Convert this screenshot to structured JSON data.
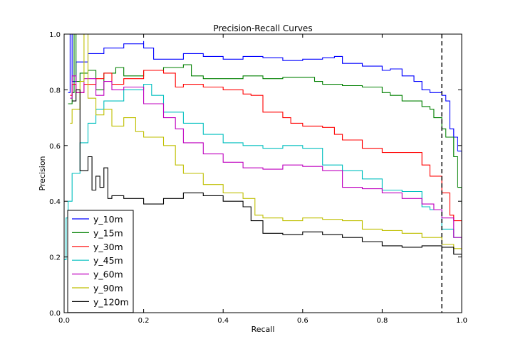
{
  "chart_data": {
    "type": "line",
    "title": "Precision-Recall Curves",
    "xlabel": "Recall",
    "ylabel": "Precision",
    "xlim": [
      0.0,
      1.0
    ],
    "ylim": [
      0.0,
      1.0
    ],
    "xticks": [
      "0.0",
      "0.2",
      "0.4",
      "0.6",
      "0.8",
      "1.0"
    ],
    "yticks": [
      "0.0",
      "0.2",
      "0.4",
      "0.6",
      "0.8",
      "1.0"
    ],
    "grid": false,
    "legend_position": "lower-left",
    "reference_line": {
      "x": 0.95,
      "style": "dashed",
      "color": "#000000"
    },
    "series": [
      {
        "name": "y_10m",
        "color": "#0000ff",
        "points": [
          [
            0.01,
            0.79
          ],
          [
            0.015,
            1.0
          ],
          [
            0.02,
            0.83
          ],
          [
            0.03,
            0.9
          ],
          [
            0.06,
            0.93
          ],
          [
            0.1,
            0.95
          ],
          [
            0.15,
            0.965
          ],
          [
            0.2,
            0.975
          ],
          [
            0.2,
            0.95
          ],
          [
            0.225,
            0.95
          ],
          [
            0.225,
            0.91
          ],
          [
            0.3,
            0.93
          ],
          [
            0.35,
            0.92
          ],
          [
            0.4,
            0.91
          ],
          [
            0.45,
            0.92
          ],
          [
            0.5,
            0.915
          ],
          [
            0.55,
            0.905
          ],
          [
            0.6,
            0.91
          ],
          [
            0.65,
            0.915
          ],
          [
            0.68,
            0.92
          ],
          [
            0.7,
            0.895
          ],
          [
            0.75,
            0.885
          ],
          [
            0.8,
            0.87
          ],
          [
            0.82,
            0.875
          ],
          [
            0.85,
            0.85
          ],
          [
            0.88,
            0.83
          ],
          [
            0.9,
            0.8
          ],
          [
            0.92,
            0.79
          ],
          [
            0.95,
            0.78
          ],
          [
            0.96,
            0.76
          ],
          [
            0.97,
            0.66
          ],
          [
            0.98,
            0.63
          ],
          [
            0.99,
            0.58
          ],
          [
            1.0,
            0.55
          ]
        ]
      },
      {
        "name": "y_15m",
        "color": "#008000",
        "points": [
          [
            0.01,
            0.75
          ],
          [
            0.02,
            0.79
          ],
          [
            0.025,
            1.0
          ],
          [
            0.03,
            0.83
          ],
          [
            0.04,
            0.86
          ],
          [
            0.06,
            0.87
          ],
          [
            0.08,
            0.8
          ],
          [
            0.1,
            0.86
          ],
          [
            0.13,
            0.88
          ],
          [
            0.15,
            0.85
          ],
          [
            0.2,
            0.87
          ],
          [
            0.25,
            0.88
          ],
          [
            0.3,
            0.89
          ],
          [
            0.32,
            0.85
          ],
          [
            0.35,
            0.84
          ],
          [
            0.4,
            0.84
          ],
          [
            0.45,
            0.85
          ],
          [
            0.5,
            0.84
          ],
          [
            0.55,
            0.845
          ],
          [
            0.6,
            0.845
          ],
          [
            0.63,
            0.83
          ],
          [
            0.65,
            0.82
          ],
          [
            0.7,
            0.815
          ],
          [
            0.75,
            0.81
          ],
          [
            0.8,
            0.79
          ],
          [
            0.82,
            0.78
          ],
          [
            0.85,
            0.76
          ],
          [
            0.88,
            0.76
          ],
          [
            0.9,
            0.74
          ],
          [
            0.92,
            0.73
          ],
          [
            0.93,
            0.7
          ],
          [
            0.95,
            0.66
          ],
          [
            0.96,
            0.63
          ],
          [
            0.98,
            0.56
          ],
          [
            0.99,
            0.45
          ],
          [
            1.0,
            0.39
          ]
        ]
      },
      {
        "name": "y_30m",
        "color": "#ff0000",
        "points": [
          [
            0.015,
            0.78
          ],
          [
            0.02,
            0.82
          ],
          [
            0.03,
            0.79
          ],
          [
            0.05,
            0.82
          ],
          [
            0.08,
            0.84
          ],
          [
            0.1,
            0.86
          ],
          [
            0.12,
            0.82
          ],
          [
            0.15,
            0.84
          ],
          [
            0.2,
            0.87
          ],
          [
            0.25,
            0.86
          ],
          [
            0.28,
            0.81
          ],
          [
            0.3,
            0.82
          ],
          [
            0.35,
            0.81
          ],
          [
            0.4,
            0.8
          ],
          [
            0.45,
            0.785
          ],
          [
            0.47,
            0.78
          ],
          [
            0.5,
            0.72
          ],
          [
            0.55,
            0.7
          ],
          [
            0.57,
            0.68
          ],
          [
            0.6,
            0.67
          ],
          [
            0.65,
            0.665
          ],
          [
            0.68,
            0.64
          ],
          [
            0.7,
            0.62
          ],
          [
            0.75,
            0.59
          ],
          [
            0.8,
            0.575
          ],
          [
            0.85,
            0.575
          ],
          [
            0.9,
            0.53
          ],
          [
            0.92,
            0.49
          ],
          [
            0.95,
            0.43
          ],
          [
            0.97,
            0.35
          ],
          [
            0.98,
            0.33
          ],
          [
            1.0,
            0.26
          ]
        ]
      },
      {
        "name": "y_45m",
        "color": "#00bfbf",
        "points": [
          [
            0.0,
            0.19
          ],
          [
            0.005,
            0.34
          ],
          [
            0.01,
            0.4
          ],
          [
            0.02,
            0.5
          ],
          [
            0.04,
            0.61
          ],
          [
            0.06,
            0.68
          ],
          [
            0.08,
            0.73
          ],
          [
            0.1,
            0.76
          ],
          [
            0.15,
            0.8
          ],
          [
            0.2,
            0.82
          ],
          [
            0.22,
            0.78
          ],
          [
            0.25,
            0.72
          ],
          [
            0.3,
            0.68
          ],
          [
            0.35,
            0.64
          ],
          [
            0.4,
            0.61
          ],
          [
            0.45,
            0.6
          ],
          [
            0.5,
            0.59
          ],
          [
            0.55,
            0.6
          ],
          [
            0.6,
            0.59
          ],
          [
            0.65,
            0.53
          ],
          [
            0.7,
            0.51
          ],
          [
            0.75,
            0.48
          ],
          [
            0.8,
            0.44
          ],
          [
            0.85,
            0.435
          ],
          [
            0.9,
            0.38
          ],
          [
            0.92,
            0.37
          ],
          [
            0.95,
            0.3
          ],
          [
            0.98,
            0.27
          ],
          [
            1.0,
            0.25
          ]
        ]
      },
      {
        "name": "y_60m",
        "color": "#bf00bf",
        "points": [
          [
            0.015,
            0.77
          ],
          [
            0.02,
            0.85
          ],
          [
            0.03,
            0.79
          ],
          [
            0.05,
            0.84
          ],
          [
            0.08,
            0.78
          ],
          [
            0.1,
            0.83
          ],
          [
            0.12,
            0.8
          ],
          [
            0.15,
            0.81
          ],
          [
            0.2,
            0.75
          ],
          [
            0.25,
            0.7
          ],
          [
            0.28,
            0.66
          ],
          [
            0.3,
            0.61
          ],
          [
            0.35,
            0.57
          ],
          [
            0.4,
            0.54
          ],
          [
            0.45,
            0.52
          ],
          [
            0.5,
            0.515
          ],
          [
            0.55,
            0.53
          ],
          [
            0.6,
            0.525
          ],
          [
            0.65,
            0.51
          ],
          [
            0.7,
            0.45
          ],
          [
            0.75,
            0.445
          ],
          [
            0.8,
            0.43
          ],
          [
            0.85,
            0.41
          ],
          [
            0.9,
            0.39
          ],
          [
            0.93,
            0.37
          ],
          [
            0.95,
            0.34
          ],
          [
            0.98,
            0.27
          ],
          [
            1.0,
            0.23
          ]
        ]
      },
      {
        "name": "y_90m",
        "color": "#bfbf00",
        "points": [
          [
            0.015,
            0.68
          ],
          [
            0.02,
            0.73
          ],
          [
            0.04,
            0.83
          ],
          [
            0.05,
            1.0
          ],
          [
            0.06,
            0.77
          ],
          [
            0.08,
            0.71
          ],
          [
            0.1,
            0.73
          ],
          [
            0.12,
            0.67
          ],
          [
            0.15,
            0.7
          ],
          [
            0.18,
            0.65
          ],
          [
            0.2,
            0.63
          ],
          [
            0.25,
            0.6
          ],
          [
            0.28,
            0.53
          ],
          [
            0.3,
            0.5
          ],
          [
            0.35,
            0.46
          ],
          [
            0.4,
            0.43
          ],
          [
            0.45,
            0.41
          ],
          [
            0.48,
            0.35
          ],
          [
            0.5,
            0.34
          ],
          [
            0.55,
            0.33
          ],
          [
            0.6,
            0.34
          ],
          [
            0.65,
            0.335
          ],
          [
            0.7,
            0.33
          ],
          [
            0.75,
            0.3
          ],
          [
            0.8,
            0.295
          ],
          [
            0.85,
            0.285
          ],
          [
            0.9,
            0.27
          ],
          [
            0.95,
            0.245
          ],
          [
            0.98,
            0.23
          ],
          [
            1.0,
            0.22
          ]
        ]
      },
      {
        "name": "y_120m",
        "color": "#000000",
        "points": [
          [
            0.02,
            0.76
          ],
          [
            0.03,
            0.8
          ],
          [
            0.04,
            0.51
          ],
          [
            0.06,
            0.56
          ],
          [
            0.07,
            0.44
          ],
          [
            0.08,
            0.49
          ],
          [
            0.09,
            0.45
          ],
          [
            0.1,
            0.52
          ],
          [
            0.11,
            0.41
          ],
          [
            0.12,
            0.42
          ],
          [
            0.15,
            0.41
          ],
          [
            0.2,
            0.39
          ],
          [
            0.25,
            0.41
          ],
          [
            0.3,
            0.43
          ],
          [
            0.35,
            0.42
          ],
          [
            0.4,
            0.4
          ],
          [
            0.45,
            0.38
          ],
          [
            0.47,
            0.33
          ],
          [
            0.5,
            0.285
          ],
          [
            0.55,
            0.28
          ],
          [
            0.6,
            0.29
          ],
          [
            0.65,
            0.28
          ],
          [
            0.7,
            0.27
          ],
          [
            0.75,
            0.255
          ],
          [
            0.8,
            0.24
          ],
          [
            0.85,
            0.235
          ],
          [
            0.9,
            0.24
          ],
          [
            0.95,
            0.235
          ],
          [
            0.98,
            0.21
          ],
          [
            1.0,
            0.2
          ]
        ]
      }
    ]
  }
}
